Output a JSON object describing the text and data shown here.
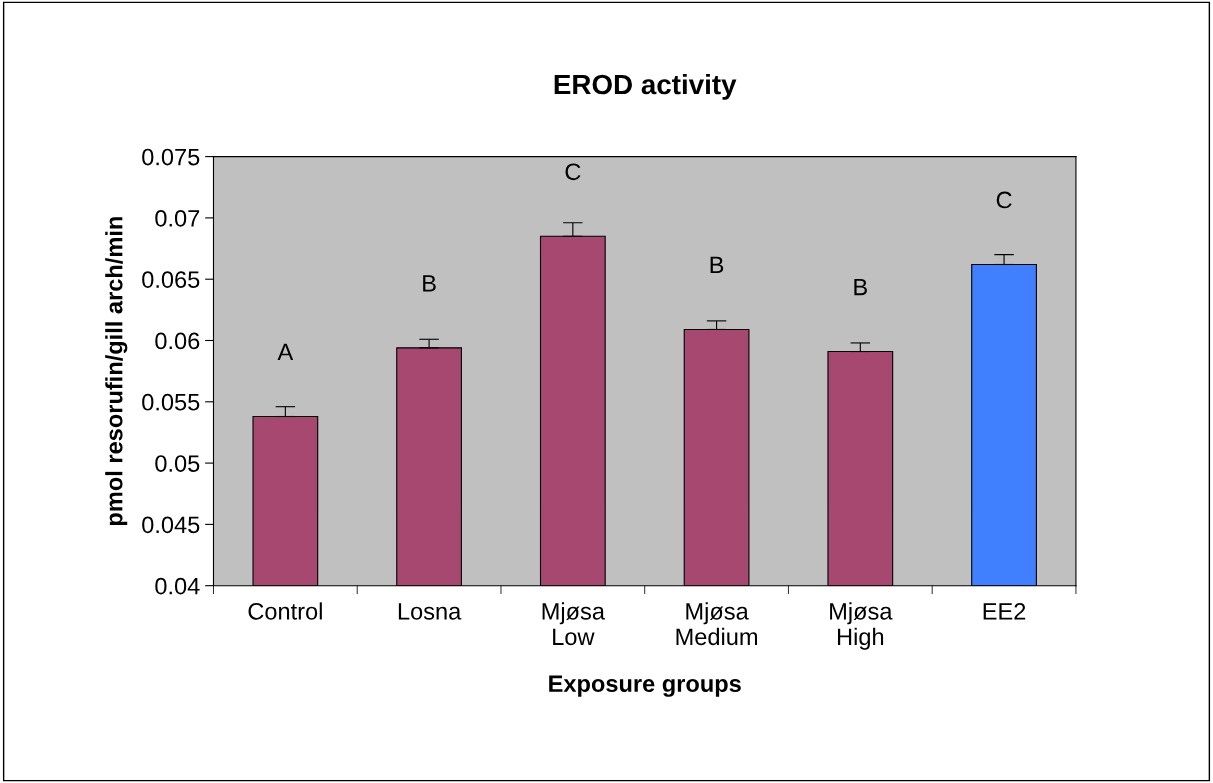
{
  "chart_data": {
    "type": "bar",
    "title": "EROD activity",
    "xlabel": "Exposure groups",
    "ylabel": "pmol resorufin/gill arch/min",
    "categories": [
      "Control",
      "Losna",
      "Mjøsa\nLow",
      "Mjøsa\nMedium",
      "Mjøsa\nHigh",
      "EE2"
    ],
    "values": [
      0.0538,
      0.0594,
      0.0685,
      0.0609,
      0.0591,
      0.0662
    ],
    "colors": [
      "#a64870",
      "#a64870",
      "#a64870",
      "#a64870",
      "#a64870",
      "#4080ff"
    ],
    "errors": [
      [
        0.0538,
        0.0546
      ],
      [
        0.0594,
        0.0601
      ],
      [
        0.0685,
        0.0696
      ],
      [
        0.0609,
        0.0616
      ],
      [
        0.0591,
        0.0598
      ],
      [
        0.0662,
        0.067
      ]
    ],
    "ylim": [
      0.04,
      0.075
    ],
    "yticks": [
      0.04,
      0.045,
      0.05,
      0.055,
      0.06,
      0.065,
      0.07,
      0.075
    ],
    "grid": false,
    "legend": false,
    "annotations": [
      "A",
      "B",
      "C",
      "B",
      "B",
      "C"
    ]
  }
}
